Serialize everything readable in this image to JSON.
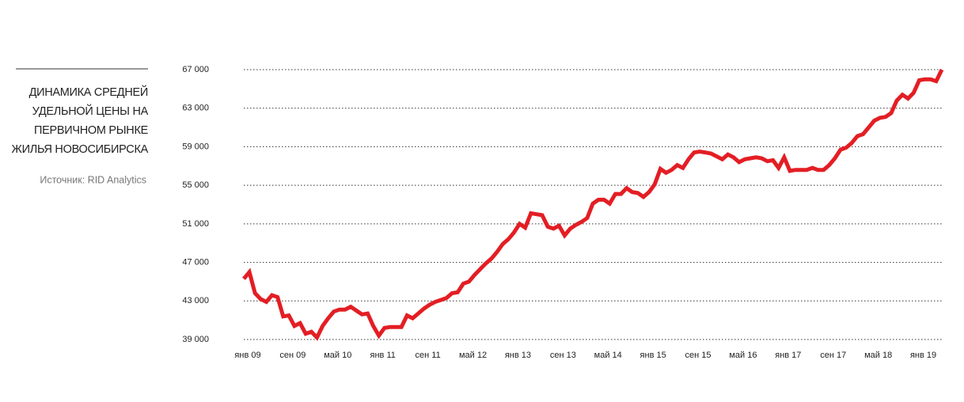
{
  "chart_data": {
    "type": "line",
    "title": [
      "ДИНАМИКА СРЕДНЕЙ",
      "УДЕЛЬНОЙ ЦЕНЫ НА",
      "ПЕРВИЧНОМ РЫНКЕ",
      "ЖИЛЬЯ НОВОСИБИРСКА"
    ],
    "source": "Источник: RID Analytics",
    "categories": [
      "янв 09",
      null,
      null,
      null,
      null,
      null,
      null,
      null,
      "сен 09",
      null,
      null,
      null,
      null,
      null,
      null,
      null,
      "май 10",
      null,
      null,
      null,
      null,
      null,
      null,
      null,
      "янв 11",
      null,
      null,
      null,
      null,
      null,
      null,
      null,
      "сен 11",
      null,
      null,
      null,
      null,
      null,
      null,
      null,
      "май 12",
      null,
      null,
      null,
      null,
      null,
      null,
      null,
      "янв 13",
      null,
      null,
      null,
      null,
      null,
      null,
      null,
      "сен 13",
      null,
      null,
      null,
      null,
      null,
      null,
      null,
      "май 14",
      null,
      null,
      null,
      null,
      null,
      null,
      null,
      "янв 15",
      null,
      null,
      null,
      null,
      null,
      null,
      null,
      "сен 15",
      null,
      null,
      null,
      null,
      null,
      null,
      null,
      "май 16",
      null,
      null,
      null,
      null,
      null,
      null,
      null,
      "янв 17",
      null,
      null,
      null,
      null,
      null,
      null,
      null,
      "сен 17",
      null,
      null,
      null,
      null,
      null,
      null,
      null,
      "май 18",
      null,
      null,
      null,
      null,
      null,
      null,
      null,
      "янв 19",
      null,
      null,
      null,
      null
    ],
    "series": [
      {
        "color": "#e31e24",
        "values": [
          45300,
          46000,
          43800,
          43200,
          42900,
          43600,
          43400,
          41400,
          41500,
          40400,
          40700,
          39600,
          39800,
          39200,
          40400,
          41200,
          41900,
          42100,
          42100,
          42400,
          42000,
          41600,
          41700,
          40400,
          39400,
          40200,
          40300,
          40300,
          40300,
          41500,
          41200,
          41700,
          42200,
          42600,
          42900,
          43100,
          43300,
          43800,
          43900,
          44800,
          45000,
          45700,
          46300,
          46900,
          47400,
          48100,
          48900,
          49400,
          50100,
          51000,
          50600,
          52100,
          52000,
          51900,
          50700,
          50500,
          50800,
          49800,
          50500,
          50900,
          51200,
          51600,
          53100,
          53500,
          53500,
          53100,
          54100,
          54100,
          54700,
          54300,
          54200,
          53800,
          54300,
          55100,
          56700,
          56300,
          56600,
          57100,
          56800,
          57700,
          58400,
          58500,
          58400,
          58300,
          58000,
          57700,
          58200,
          57900,
          57400,
          57700,
          57800,
          57900,
          57800,
          57500,
          57600,
          56800,
          57900,
          56500,
          56600,
          56600,
          56600,
          56800,
          56600,
          56600,
          57100,
          57800,
          58700,
          58900,
          59400,
          60100,
          60300,
          61000,
          61700,
          62000,
          62100,
          62500,
          63800,
          64400,
          64000,
          64600,
          65900,
          66000,
          66000,
          65800,
          67000
        ]
      }
    ],
    "ylim": [
      39000,
      67000
    ],
    "yticks": [
      {
        "value": 39000,
        "label": "39 000"
      },
      {
        "value": 43000,
        "label": "43 000"
      },
      {
        "value": 47000,
        "label": "47 000"
      },
      {
        "value": 51000,
        "label": "51 000"
      },
      {
        "value": 55000,
        "label": "55 000"
      },
      {
        "value": 59000,
        "label": "59 000"
      },
      {
        "value": 63000,
        "label": "63 000"
      },
      {
        "value": 67000,
        "label": "67 000"
      }
    ],
    "grid": true
  }
}
